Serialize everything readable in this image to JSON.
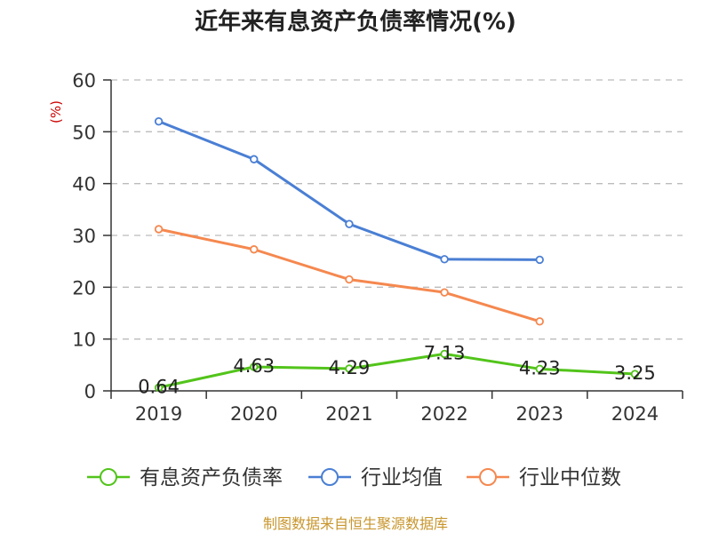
{
  "chart_data": {
    "type": "line",
    "title": "近年来有息资产负债率情况(%)",
    "ylabel": "(%)",
    "categories": [
      "2019",
      "2020",
      "2021",
      "2022",
      "2023",
      "2024"
    ],
    "ylim": [
      0,
      60
    ],
    "yticks": [
      0,
      10,
      20,
      30,
      40,
      50,
      60
    ],
    "grid": "dashed-horizontal",
    "legend_position": "bottom",
    "series": [
      {
        "name": "有息资产负债率",
        "color": "#52c41a",
        "values": [
          0.64,
          4.63,
          4.29,
          7.13,
          4.23,
          3.25
        ],
        "labels": [
          "0.64",
          "4.63",
          "4.29",
          "7.13",
          "4.23",
          "3.25"
        ]
      },
      {
        "name": "行业均值",
        "color": "#4a7fd4",
        "values": [
          52.0,
          44.7,
          32.2,
          25.4,
          25.3,
          null
        ]
      },
      {
        "name": "行业中位数",
        "color": "#f5884f",
        "values": [
          31.2,
          27.3,
          21.5,
          19.0,
          13.4,
          null
        ]
      }
    ]
  },
  "source": {
    "text": "制图数据来自恒生聚源数据库",
    "color": "#c8962e"
  },
  "colors": {
    "axis": "#333333",
    "grid": "#bbbbbb",
    "unit": "#cc0000"
  }
}
